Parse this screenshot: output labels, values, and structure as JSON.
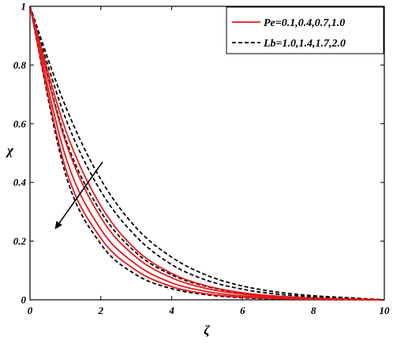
{
  "chart_data": {
    "type": "line",
    "title": "",
    "xlabel": "ζ",
    "ylabel": "χ",
    "xlim": [
      0,
      10
    ],
    "ylim": [
      0,
      1
    ],
    "x_ticks": [
      "0",
      "2",
      "4",
      "6",
      "8",
      "10"
    ],
    "y_ticks": [
      "0",
      "0.2",
      "0.4",
      "0.6",
      "0.8",
      "1"
    ],
    "grid": false,
    "legend_position": "top-right",
    "legend": [
      {
        "label": "Pe=0.1,0.4,0.7,1.0",
        "color": "#e41a1c",
        "style": "solid"
      },
      {
        "label": "Lb=1.0,1.4,1.7,2.0",
        "color": "#000000",
        "style": "dashed"
      }
    ],
    "arrow_annotation": {
      "from": [
        2.05,
        0.47
      ],
      "to": [
        0.7,
        0.24
      ],
      "meaning": "increasing parameter"
    },
    "series": [
      {
        "group": "Pe",
        "style": "solid",
        "color": "#e41a1c",
        "x": [
          0,
          1,
          2,
          3,
          4,
          5,
          6,
          7,
          8,
          9,
          10
        ],
        "y": [
          1.0,
          0.45,
          0.21,
          0.1,
          0.045,
          0.02,
          0.009,
          0.004,
          0.002,
          0.001,
          0.0
        ]
      },
      {
        "group": "Pe",
        "style": "solid",
        "color": "#e41a1c",
        "x": [
          0,
          1,
          2,
          3,
          4,
          5,
          6,
          7,
          8,
          9,
          10
        ],
        "y": [
          1.0,
          0.49,
          0.24,
          0.12,
          0.058,
          0.028,
          0.013,
          0.006,
          0.003,
          0.001,
          0.0
        ]
      },
      {
        "group": "Pe",
        "style": "solid",
        "color": "#e41a1c",
        "x": [
          0,
          1,
          2,
          3,
          4,
          5,
          6,
          7,
          8,
          9,
          10
        ],
        "y": [
          1.0,
          0.54,
          0.28,
          0.145,
          0.075,
          0.038,
          0.019,
          0.009,
          0.004,
          0.002,
          0.0
        ]
      },
      {
        "group": "Pe",
        "style": "solid",
        "color": "#e41a1c",
        "x": [
          0,
          1,
          2,
          3,
          4,
          5,
          6,
          7,
          8,
          9,
          10
        ],
        "y": [
          1.0,
          0.58,
          0.32,
          0.17,
          0.09,
          0.047,
          0.024,
          0.012,
          0.006,
          0.003,
          0.0
        ]
      },
      {
        "group": "Lb",
        "style": "dashed",
        "color": "#000000",
        "x": [
          0,
          1,
          2,
          3,
          4,
          5,
          6,
          7,
          8,
          9,
          10
        ],
        "y": [
          1.0,
          0.43,
          0.19,
          0.085,
          0.038,
          0.017,
          0.007,
          0.003,
          0.001,
          0.0,
          0.0
        ]
      },
      {
        "group": "Lb",
        "style": "dashed",
        "color": "#000000",
        "x": [
          0,
          1,
          2,
          3,
          4,
          5,
          6,
          7,
          8,
          9,
          10
        ],
        "y": [
          1.0,
          0.55,
          0.3,
          0.16,
          0.085,
          0.045,
          0.023,
          0.012,
          0.006,
          0.003,
          0.0
        ]
      },
      {
        "group": "Lb",
        "style": "dashed",
        "color": "#000000",
        "x": [
          0,
          1,
          2,
          3,
          4,
          5,
          6,
          7,
          8,
          9,
          10
        ],
        "y": [
          1.0,
          0.62,
          0.37,
          0.215,
          0.12,
          0.066,
          0.036,
          0.019,
          0.01,
          0.005,
          0.0
        ]
      },
      {
        "group": "Lb",
        "style": "dashed",
        "color": "#000000",
        "x": [
          0,
          1,
          2,
          3,
          4,
          5,
          6,
          7,
          8,
          9,
          10
        ],
        "y": [
          1.0,
          0.66,
          0.41,
          0.245,
          0.145,
          0.083,
          0.047,
          0.026,
          0.014,
          0.007,
          0.0
        ]
      }
    ]
  }
}
